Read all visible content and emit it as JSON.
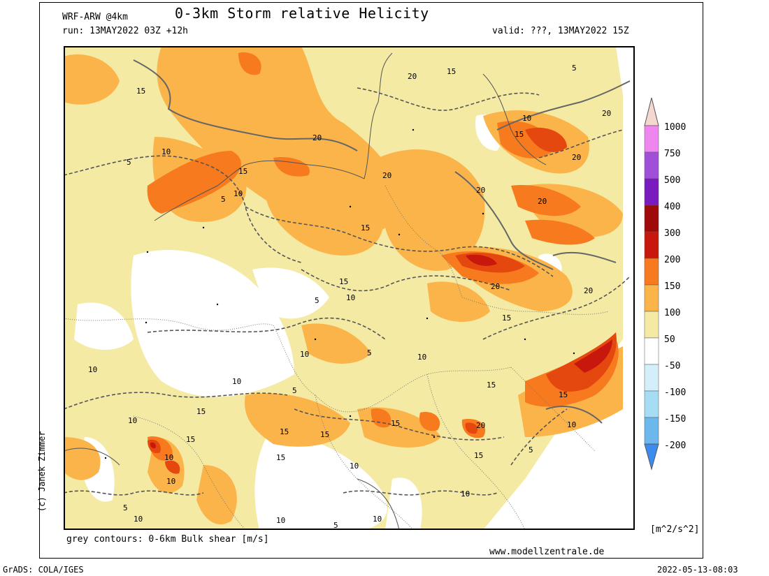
{
  "header": {
    "model": "WRF-ARW @4km",
    "title": "0-3km Storm relative Helicity",
    "run": "run: 13MAY2022 03Z +12h",
    "valid": "valid: ???, 13MAY2022 15Z"
  },
  "map": {
    "contour_labels": [
      "5",
      "10",
      "15",
      "20"
    ],
    "colors": {
      "c50_100": "#f4eaa4",
      "c100_150": "#fbb44a",
      "c150_200": "#f77a1e",
      "c200_300": "#e5480f",
      "c300_400": "#c8180e",
      "c400_500": "#9e0a0a",
      "c500_750": "#7a1bbf",
      "c750_1000": "#ef86ef",
      "c1000": "#f4d8d0",
      "n50": "#d4eefa",
      "n100": "#a6dcf4",
      "n150": "#6cb8ec",
      "n200": "#3c8cf0",
      "border": "#666666",
      "coast": "#666666"
    }
  },
  "legend": {
    "ticks": [
      "1000",
      "750",
      "500",
      "400",
      "300",
      "200",
      "150",
      "100",
      "50",
      "-50",
      "-100",
      "-150",
      "-200"
    ],
    "colors": [
      "#f4d8d0",
      "#ef86ef",
      "#a050d8",
      "#7a1bbf",
      "#9e0a0a",
      "#c8180e",
      "#f77a1e",
      "#fbb44a",
      "#f4eaa4",
      "#ffffff",
      "#d4eefa",
      "#a6dcf4",
      "#6cb8ec",
      "#3c8cf0"
    ],
    "unit": "[m^2/s^2]"
  },
  "footer": {
    "note": "grey contours: 0-6km Bulk shear [m/s]",
    "site": "www.modellzentrale.de",
    "grads": "GrADS: COLA/IGES",
    "timestamp": "2022-05-13-08:03",
    "credit": "(c) Janek Zimmer"
  }
}
